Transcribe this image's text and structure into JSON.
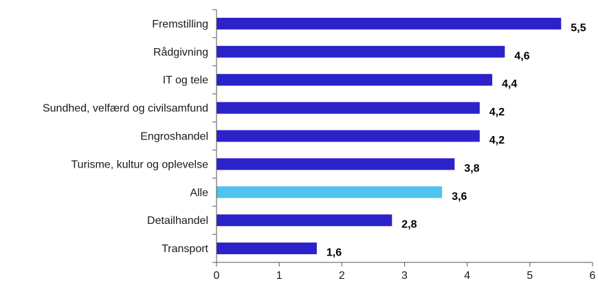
{
  "chart_data": {
    "type": "bar",
    "orientation": "horizontal",
    "categories": [
      "Fremstilling",
      "Rådgivning",
      "IT og tele",
      "Sundhed, velfærd og civilsamfund",
      "Engroshandel",
      "Turisme, kultur og oplevelse",
      "Alle",
      "Detailhandel",
      "Transport"
    ],
    "values": [
      5.5,
      4.6,
      4.4,
      4.2,
      4.2,
      3.8,
      3.6,
      2.8,
      1.6
    ],
    "value_labels": [
      "5,5",
      "4,6",
      "4,4",
      "4,2",
      "4,2",
      "3,8",
      "3,6",
      "2,8",
      "1,6"
    ],
    "xlim": [
      0,
      6
    ],
    "xticks": [
      "0",
      "1",
      "2",
      "3",
      "4",
      "5",
      "6"
    ],
    "highlight_category": "Alle",
    "grid": false,
    "legend": "none",
    "colors": {
      "bar": "#2b22c9",
      "highlight": "#4fc3f0"
    }
  }
}
